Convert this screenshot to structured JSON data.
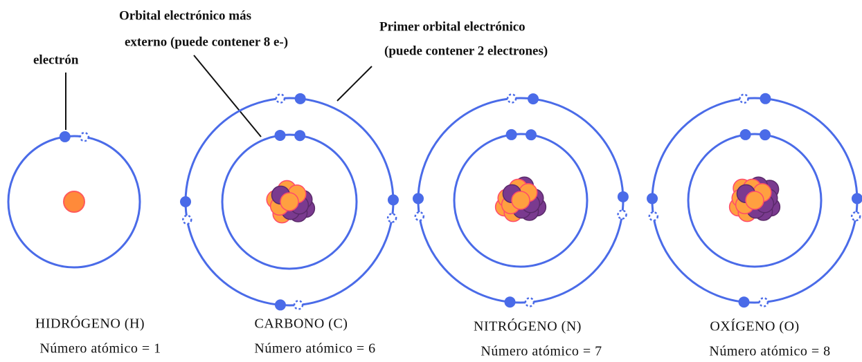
{
  "callouts": {
    "electron": "electrón",
    "outer_orbital": [
      "Orbital electrónico más",
      "externo (puede contener 8 e-)"
    ],
    "first_orbital": [
      "Primer orbital electrónico",
      "(puede contener 2 electrones)"
    ]
  },
  "atoms": [
    {
      "name": "HIDRÓGENO (H)",
      "atomic_number": "Número atómico = 1"
    },
    {
      "name": "CARBONO (C)",
      "atomic_number": "Número atómico = 6"
    },
    {
      "name": "NITRÓGENO (N)",
      "atomic_number": "Número atómico = 7"
    },
    {
      "name": "OXÍGENO (O)",
      "atomic_number": "Número atómico = 8"
    }
  ]
}
